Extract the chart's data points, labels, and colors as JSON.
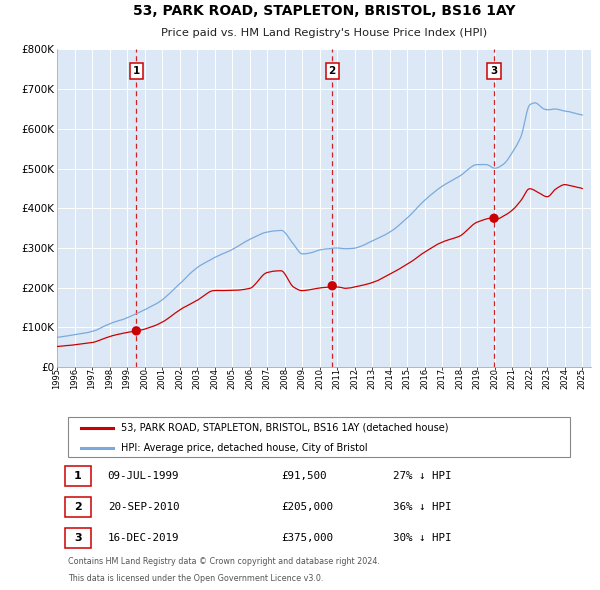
{
  "title": "53, PARK ROAD, STAPLETON, BRISTOL, BS16 1AY",
  "subtitle": "Price paid vs. HM Land Registry's House Price Index (HPI)",
  "legend_line1": "53, PARK ROAD, STAPLETON, BRISTOL, BS16 1AY (detached house)",
  "legend_line2": "HPI: Average price, detached house, City of Bristol",
  "property_color": "#cc0000",
  "hpi_color": "#7aaadd",
  "plot_bg_color": "#dce8f5",
  "transactions": [
    {
      "label": "1",
      "date": "09-JUL-1999",
      "year": 1999.53,
      "price": 91500,
      "pct": "27% ↓ HPI"
    },
    {
      "label": "2",
      "date": "20-SEP-2010",
      "year": 2010.72,
      "price": 205000,
      "pct": "36% ↓ HPI"
    },
    {
      "label": "3",
      "date": "16-DEC-2019",
      "year": 2019.96,
      "price": 375000,
      "pct": "30% ↓ HPI"
    }
  ],
  "footnote_line1": "Contains HM Land Registry data © Crown copyright and database right 2024.",
  "footnote_line2": "This data is licensed under the Open Government Licence v3.0.",
  "ylim": [
    0,
    800000
  ],
  "yticks": [
    0,
    100000,
    200000,
    300000,
    400000,
    500000,
    600000,
    700000,
    800000
  ],
  "xlim_start": 1995.0,
  "xlim_end": 2025.5,
  "xticks": [
    1995,
    1996,
    1997,
    1998,
    1999,
    2000,
    2001,
    2002,
    2003,
    2004,
    2005,
    2006,
    2007,
    2008,
    2009,
    2010,
    2011,
    2012,
    2013,
    2014,
    2015,
    2016,
    2017,
    2018,
    2019,
    2020,
    2021,
    2022,
    2023,
    2024,
    2025
  ]
}
